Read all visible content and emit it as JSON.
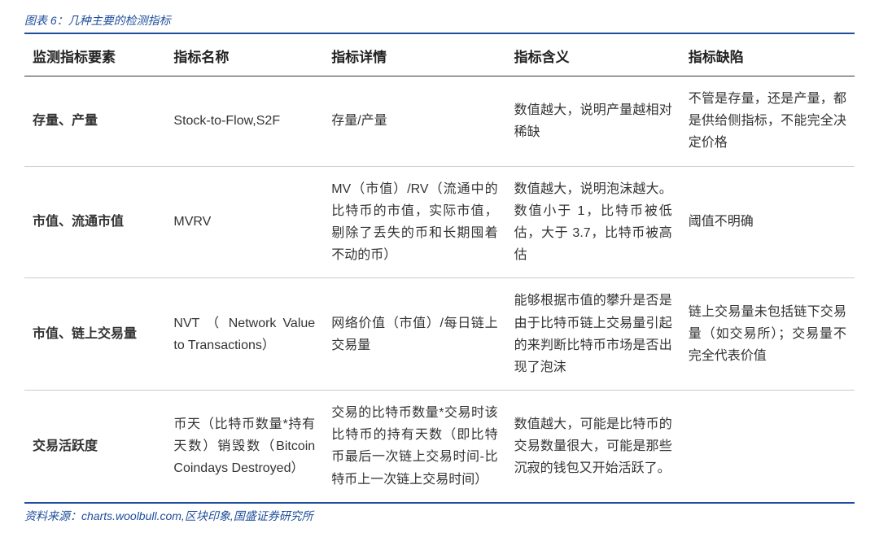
{
  "caption": "图表 6：几种主要的检测指标",
  "source": "资料来源：charts.woolbull.com,区块印象,国盛证券研究所",
  "table": {
    "columns": [
      "监测指标要素",
      "指标名称",
      "指标详情",
      "指标含义",
      "指标缺陷"
    ],
    "rows": [
      {
        "element": "存量、产量",
        "name": "Stock-to-Flow,S2F",
        "detail": "存量/产量",
        "meaning": "数值越大，说明产量越相对稀缺",
        "defect": "不管是存量，还是产量，都是供给侧指标，不能完全决定价格"
      },
      {
        "element": "市值、流通市值",
        "name": "MVRV",
        "detail": "MV（市值）/RV（流通中的比特币的市值，实际市值，剔除了丢失的币和长期囤着不动的币）",
        "meaning": "数值越大，说明泡沫越大。数值小于 1，比特币被低估，大于 3.7，比特币被高估",
        "defect": "阈值不明确"
      },
      {
        "element": "市值、链上交易量",
        "name": "NVT （ Network Value to Transactions）",
        "detail": "网络价值（市值）/每日链上交易量",
        "meaning": "能够根据市值的攀升是否是由于比特币链上交易量引起的来判断比特币市场是否出现了泡沫",
        "defect": "链上交易量未包括链下交易量（如交易所）；交易量不完全代表价值"
      },
      {
        "element": "交易活跃度",
        "name": "币天（比特币数量*持有天数）销毁数（Bitcoin Coindays Destroyed）",
        "detail": "交易的比特币数量*交易时该比特币的持有天数（即比特币最后一次链上交易时间-比特币上一次链上交易时间）",
        "meaning": "数值越大，可能是比特币的交易数量很大，可能是那些沉寂的钱包又开始活跃了。",
        "defect": ""
      }
    ]
  },
  "colors": {
    "caption_color": "#1f4e9c",
    "border_color": "#1f4e9c",
    "header_border": "#333333",
    "row_border": "#cccccc",
    "text_color": "#333333",
    "background": "#ffffff"
  }
}
